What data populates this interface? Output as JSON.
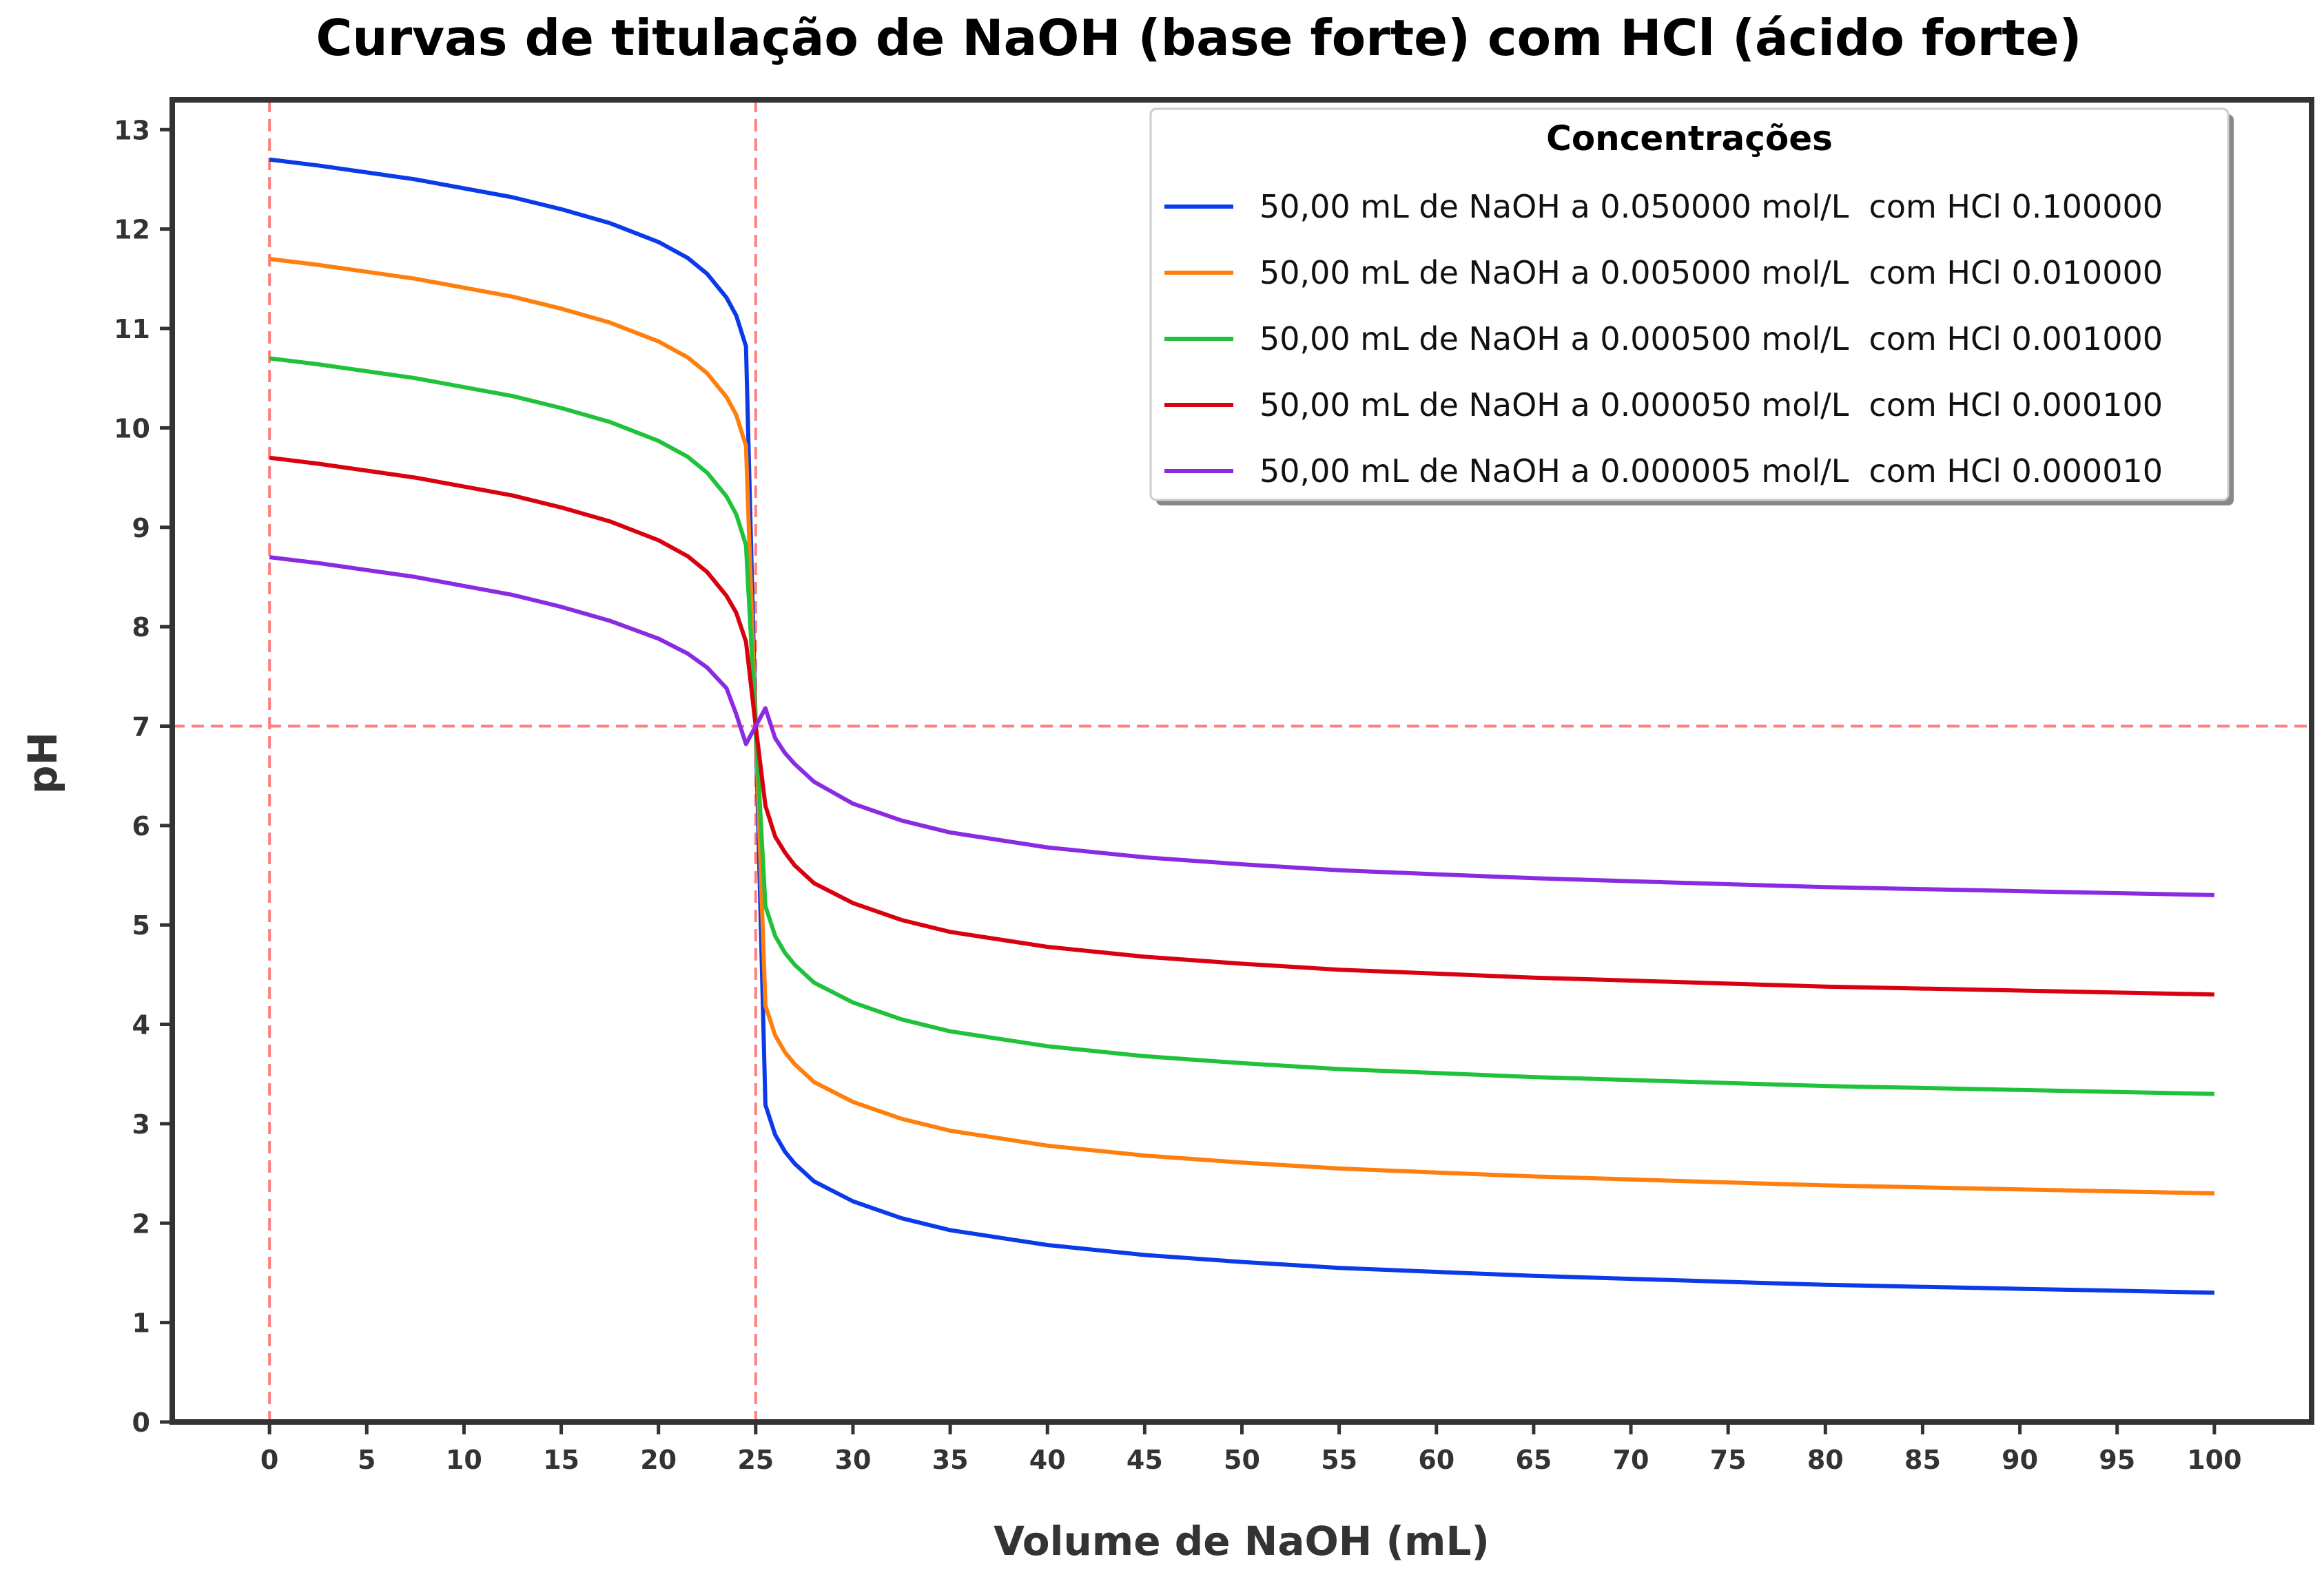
{
  "chart_data": {
    "type": "line",
    "title": "Curvas de titulação de NaOH (base forte) com HCl (ácido forte)",
    "xlabel": "Volume de NaOH (mL)",
    "ylabel": "pH",
    "xlim": [
      -5,
      105
    ],
    "ylim": [
      0,
      13.3
    ],
    "xticks": [
      "0",
      "5",
      "10",
      "15",
      "20",
      "25",
      "30",
      "35",
      "40",
      "45",
      "50",
      "55",
      "60",
      "65",
      "70",
      "75",
      "80",
      "85",
      "90",
      "95",
      "100"
    ],
    "yticks": [
      "0",
      "1",
      "2",
      "3",
      "4",
      "5",
      "6",
      "7",
      "8",
      "9",
      "10",
      "11",
      "12",
      "13"
    ],
    "grid": false,
    "reference_lines": {
      "vertical": [
        0,
        25
      ],
      "horizontal": [
        7
      ],
      "color": "#ff7f7f",
      "style": "dashed"
    },
    "legend": {
      "title": "Concentrações",
      "placement": "top-right"
    },
    "series": [
      {
        "name": "50,00 mL de NaOH a 0.050000 mol/L  com HCl 0.100000",
        "color": "#0b3be8",
        "x": [
          0,
          2.5,
          5,
          7.5,
          10,
          12.5,
          15,
          17.5,
          20,
          21.5,
          22.5,
          23.5,
          24,
          24.5,
          25,
          25.5,
          26,
          26.5,
          27,
          28,
          30,
          32.5,
          35,
          40,
          45,
          50,
          55,
          60,
          65,
          70,
          75,
          80,
          85,
          90,
          95,
          100
        ],
        "y": [
          12.7,
          12.64,
          12.57,
          12.5,
          12.41,
          12.32,
          12.2,
          12.06,
          11.87,
          11.71,
          11.55,
          11.31,
          11.13,
          10.82,
          7.0,
          3.19,
          2.89,
          2.72,
          2.6,
          2.42,
          2.22,
          2.05,
          1.93,
          1.78,
          1.68,
          1.61,
          1.55,
          1.51,
          1.47,
          1.44,
          1.41,
          1.38,
          1.36,
          1.34,
          1.32,
          1.3
        ]
      },
      {
        "name": "50,00 mL de NaOH a 0.005000 mol/L  com HCl 0.010000",
        "color": "#ff7f0e",
        "x": [
          0,
          2.5,
          5,
          7.5,
          10,
          12.5,
          15,
          17.5,
          20,
          21.5,
          22.5,
          23.5,
          24,
          24.5,
          25,
          25.5,
          26,
          26.5,
          27,
          28,
          30,
          32.5,
          35,
          40,
          45,
          50,
          55,
          60,
          65,
          70,
          75,
          80,
          85,
          90,
          95,
          100
        ],
        "y": [
          11.7,
          11.64,
          11.57,
          11.5,
          11.41,
          11.32,
          11.2,
          11.06,
          10.87,
          10.71,
          10.55,
          10.31,
          10.13,
          9.82,
          7.0,
          4.19,
          3.89,
          3.72,
          3.6,
          3.42,
          3.22,
          3.05,
          2.93,
          2.78,
          2.68,
          2.61,
          2.55,
          2.51,
          2.47,
          2.44,
          2.41,
          2.38,
          2.36,
          2.34,
          2.32,
          2.3
        ]
      },
      {
        "name": "50,00 mL de NaOH a 0.000500 mol/L  com HCl 0.001000",
        "color": "#1fc23a",
        "x": [
          0,
          2.5,
          5,
          7.5,
          10,
          12.5,
          15,
          17.5,
          20,
          21.5,
          22.5,
          23.5,
          24,
          24.5,
          25,
          25.5,
          26,
          26.5,
          27,
          28,
          30,
          32.5,
          35,
          40,
          45,
          50,
          55,
          60,
          65,
          70,
          75,
          80,
          85,
          90,
          95,
          100
        ],
        "y": [
          10.7,
          10.64,
          10.57,
          10.5,
          10.41,
          10.32,
          10.2,
          10.06,
          9.87,
          9.71,
          9.55,
          9.31,
          9.13,
          8.82,
          7.0,
          5.19,
          4.89,
          4.72,
          4.6,
          4.42,
          4.22,
          4.05,
          3.93,
          3.78,
          3.68,
          3.61,
          3.55,
          3.51,
          3.47,
          3.44,
          3.41,
          3.38,
          3.36,
          3.34,
          3.32,
          3.3
        ]
      },
      {
        "name": "50,00 mL de NaOH a 0.000050 mol/L  com HCl 0.000100",
        "color": "#d90010",
        "x": [
          0,
          2.5,
          5,
          7.5,
          10,
          12.5,
          15,
          17.5,
          20,
          21.5,
          22.5,
          23.5,
          24,
          24.5,
          25,
          25.5,
          26,
          26.5,
          27,
          28,
          30,
          32.5,
          35,
          40,
          45,
          50,
          55,
          60,
          65,
          70,
          75,
          80,
          85,
          90,
          95,
          100
        ],
        "y": [
          9.7,
          9.64,
          9.57,
          9.5,
          9.41,
          9.32,
          9.2,
          9.06,
          8.87,
          8.71,
          8.55,
          8.31,
          8.14,
          7.85,
          7.0,
          6.2,
          5.89,
          5.73,
          5.6,
          5.42,
          5.22,
          5.05,
          4.93,
          4.78,
          4.68,
          4.61,
          4.55,
          4.51,
          4.47,
          4.44,
          4.41,
          4.38,
          4.36,
          4.34,
          4.32,
          4.3
        ]
      },
      {
        "name": "50,00 mL de NaOH a 0.000005 mol/L  com HCl 0.000010",
        "color": "#8a2be2",
        "x": [
          0,
          2.5,
          5,
          7.5,
          10,
          12.5,
          15,
          17.5,
          20,
          21.5,
          22.5,
          23.5,
          24,
          24.5,
          25,
          25.5,
          26,
          26.5,
          27,
          28,
          30,
          32.5,
          35,
          40,
          45,
          50,
          55,
          60,
          65,
          70,
          75,
          80,
          85,
          90,
          95,
          100
        ],
        "y": [
          8.7,
          8.64,
          8.57,
          8.5,
          8.41,
          8.32,
          8.2,
          8.06,
          7.88,
          7.73,
          7.59,
          7.38,
          7.12,
          6.82,
          7.0,
          7.18,
          6.88,
          6.73,
          6.62,
          6.44,
          6.22,
          6.05,
          5.93,
          5.78,
          5.68,
          5.61,
          5.55,
          5.51,
          5.47,
          5.44,
          5.41,
          5.38,
          5.36,
          5.34,
          5.32,
          5.3
        ]
      }
    ]
  }
}
